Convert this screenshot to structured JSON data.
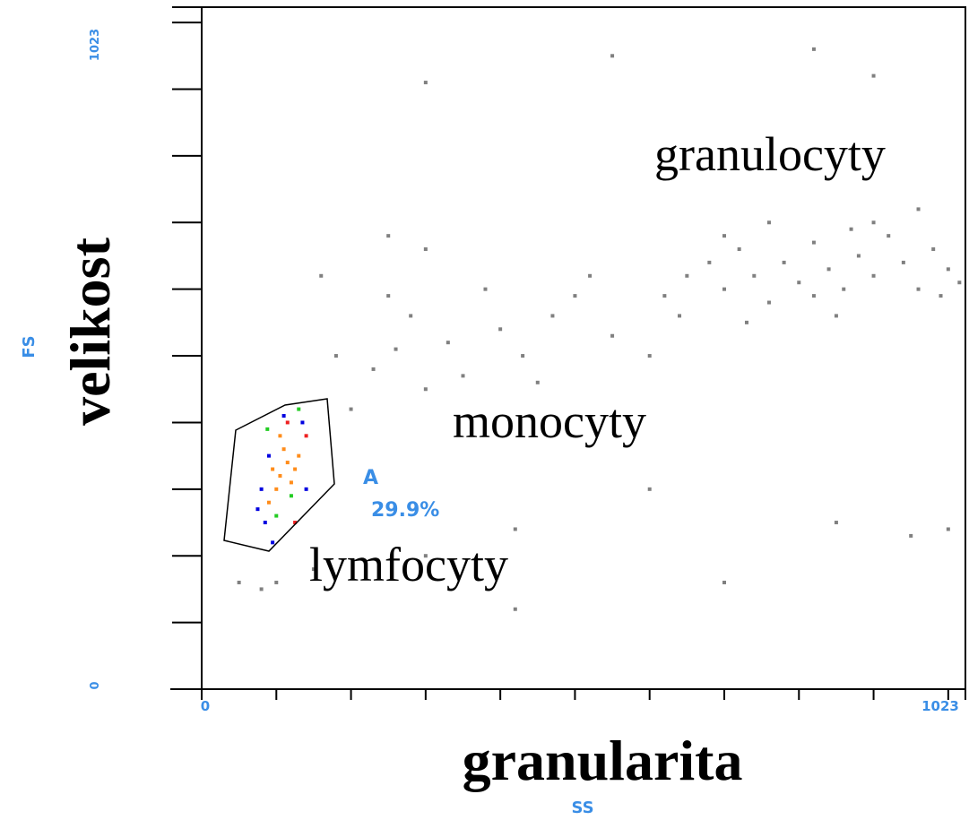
{
  "chart_data": {
    "type": "scatter",
    "title_x": "granularita",
    "title_y": "velikost",
    "xlabel": "SS",
    "ylabel": "FS",
    "xlim": [
      0,
      1023
    ],
    "ylim": [
      0,
      1023
    ],
    "xticks": [
      0,
      1023
    ],
    "yticks": [
      0,
      1023
    ],
    "xminor": [
      100,
      200,
      300,
      400,
      500,
      600,
      700,
      800,
      900,
      1000
    ],
    "yminor": [
      100,
      200,
      300,
      400,
      500,
      600,
      700,
      800,
      900,
      1000
    ],
    "annotations": [
      "granulocyty",
      "monocyty",
      "lymfocyty"
    ],
    "gate": {
      "name": "A",
      "percent": "29.9%"
    },
    "series": [
      {
        "color": "#808080",
        "x": [
          620,
          650,
          680,
          700,
          720,
          740,
          760,
          780,
          800,
          820,
          840,
          860,
          880,
          900,
          920,
          940,
          960,
          980,
          1000,
          1015,
          700,
          760,
          850,
          900,
          960,
          640,
          820,
          870,
          990,
          730,
          200,
          230,
          260,
          300,
          330,
          350,
          280,
          400,
          430,
          470,
          500,
          380,
          250,
          180,
          450,
          550,
          520,
          160,
          300,
          600,
          150,
          300,
          420,
          600,
          700,
          850,
          950,
          1000,
          550,
          820,
          300,
          900,
          250,
          100,
          420,
          50,
          80
        ],
        "values": [
          590,
          620,
          640,
          600,
          660,
          620,
          580,
          640,
          610,
          670,
          630,
          600,
          650,
          620,
          680,
          640,
          600,
          660,
          630,
          610,
          680,
          700,
          560,
          700,
          720,
          560,
          590,
          690,
          590,
          550,
          420,
          480,
          510,
          450,
          520,
          470,
          560,
          540,
          500,
          560,
          590,
          600,
          590,
          500,
          460,
          530,
          620,
          620,
          660,
          500,
          180,
          200,
          240,
          300,
          160,
          250,
          230,
          240,
          950,
          960,
          910,
          920,
          680,
          160,
          120,
          160,
          150
        ]
      },
      {
        "color": "#ff8c1a",
        "x": [
          95,
          105,
          115,
          100,
          120,
          110,
          130,
          90,
          125,
          105
        ],
        "values": [
          330,
          320,
          340,
          300,
          310,
          360,
          350,
          280,
          330,
          380
        ]
      },
      {
        "color": "#0000e0",
        "x": [
          80,
          85,
          90,
          135,
          110,
          75,
          140,
          95
        ],
        "values": [
          300,
          250,
          350,
          400,
          410,
          270,
          300,
          220
        ]
      },
      {
        "color": "#22cc22",
        "x": [
          88,
          120,
          100,
          130
        ],
        "values": [
          390,
          290,
          260,
          420
        ]
      },
      {
        "color": "#ee2020",
        "x": [
          140,
          125,
          115
        ],
        "values": [
          380,
          250,
          400
        ]
      }
    ]
  }
}
